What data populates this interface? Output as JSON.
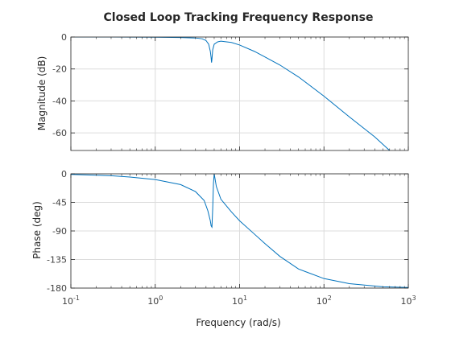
{
  "chart_data": {
    "type": "line",
    "title": "Closed Loop Tracking Frequency Response",
    "xlabel": "Frequency (rad/s)",
    "xscale": "log",
    "xlim": [
      0.1,
      1000
    ],
    "x_tick_labels": [
      {
        "base": "10",
        "exp": "-1"
      },
      {
        "base": "10",
        "exp": "0"
      },
      {
        "base": "10",
        "exp": "1"
      },
      {
        "base": "10",
        "exp": "2"
      },
      {
        "base": "10",
        "exp": "3"
      }
    ],
    "grid": true,
    "color": "#0072bd",
    "panels": [
      {
        "ylabel": "Magnitude (dB)",
        "ylim": [
          -71,
          0
        ],
        "yticks": [
          "0",
          "-20",
          "-40",
          "-60"
        ],
        "ytick_values": [
          0,
          -20,
          -40,
          -60
        ],
        "points": [
          [
            0.1,
            0.0
          ],
          [
            0.3,
            0.0
          ],
          [
            1.0,
            -0.1
          ],
          [
            2.0,
            -0.3
          ],
          [
            3.0,
            -0.6
          ],
          [
            3.6,
            -1.1
          ],
          [
            4.0,
            -2.2
          ],
          [
            4.3,
            -4.5
          ],
          [
            4.5,
            -9.0
          ],
          [
            4.6,
            -13.0
          ],
          [
            4.65,
            -16.0
          ],
          [
            4.7,
            -14.0
          ],
          [
            4.8,
            -8.0
          ],
          [
            5.0,
            -4.5
          ],
          [
            5.5,
            -3.0
          ],
          [
            6.0,
            -2.6
          ],
          [
            7.0,
            -3.0
          ],
          [
            8.0,
            -3.4
          ],
          [
            10.0,
            -5.0
          ],
          [
            15.0,
            -9.0
          ],
          [
            20.0,
            -12.5
          ],
          [
            30.0,
            -17.5
          ],
          [
            50.0,
            -25.0
          ],
          [
            100.0,
            -37.0
          ],
          [
            200.0,
            -50.0
          ],
          [
            400.0,
            -62.5
          ],
          [
            600.0,
            -71.0
          ]
        ]
      },
      {
        "ylabel": "Phase (deg)",
        "ylim": [
          -180,
          0
        ],
        "yticks": [
          "0",
          "-45",
          "-90",
          "-135",
          "-180"
        ],
        "ytick_values": [
          0,
          -45,
          -90,
          -135,
          -180
        ],
        "points": [
          [
            0.1,
            -1.0
          ],
          [
            0.3,
            -3.0
          ],
          [
            0.5,
            -5.0
          ],
          [
            1.0,
            -9.0
          ],
          [
            2.0,
            -17.0
          ],
          [
            3.0,
            -28.0
          ],
          [
            3.8,
            -42.0
          ],
          [
            4.2,
            -58.0
          ],
          [
            4.5,
            -74.0
          ],
          [
            4.6,
            -82.0
          ],
          [
            4.7,
            -84.0
          ],
          [
            4.8,
            -55.0
          ],
          [
            4.9,
            -15.0
          ],
          [
            5.0,
            0.0
          ],
          [
            5.3,
            -20.0
          ],
          [
            6.0,
            -40.0
          ],
          [
            8.0,
            -60.0
          ],
          [
            10.0,
            -74.0
          ],
          [
            15.0,
            -95.0
          ],
          [
            20.0,
            -110.0
          ],
          [
            30.0,
            -130.0
          ],
          [
            50.0,
            -150.0
          ],
          [
            100.0,
            -165.0
          ],
          [
            200.0,
            -173.0
          ],
          [
            500.0,
            -178.0
          ],
          [
            1000.0,
            -179.0
          ]
        ]
      }
    ]
  }
}
